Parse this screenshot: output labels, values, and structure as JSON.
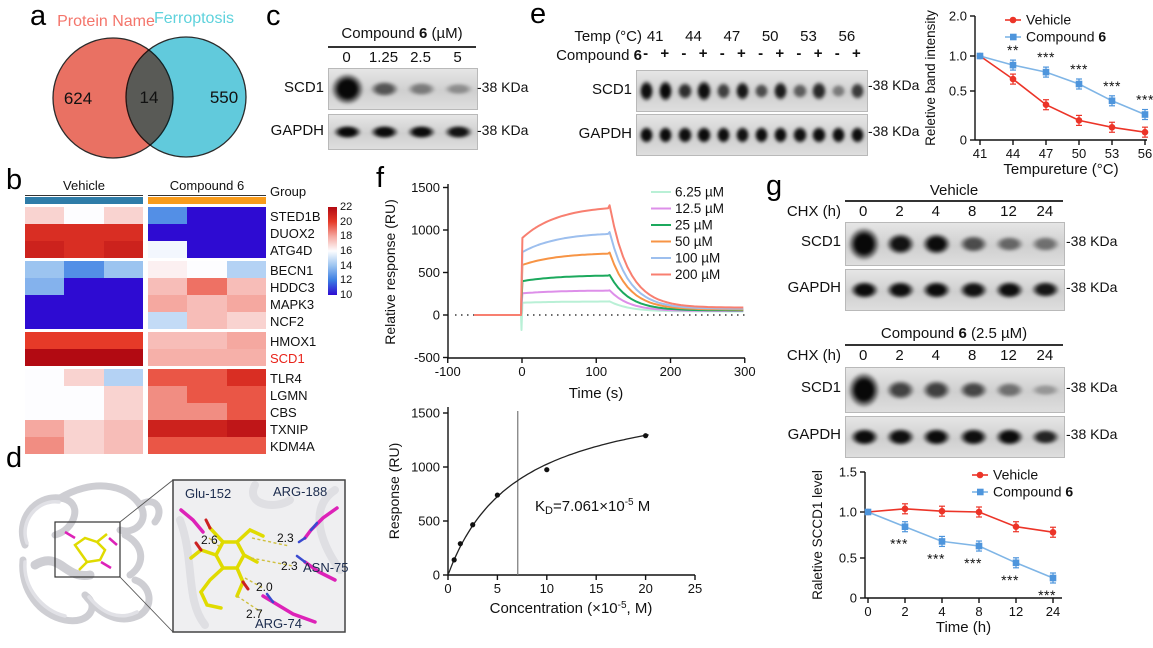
{
  "panel_a": {
    "letter": "a"
  },
  "panel_b": {
    "letter": "b"
  },
  "panel_c": {
    "letter": "c",
    "blot": {
      "title_pre": "Compound ",
      "title_bold": "6",
      "title_post": " (µM)",
      "doses": [
        "0",
        "1.25",
        "2.5",
        "5"
      ],
      "rows": [
        {
          "label": "SCD1",
          "marker": "-38 KDa",
          "bands": [
            1,
            0.5,
            0.28,
            0.18
          ]
        },
        {
          "label": "GAPDH",
          "marker": "-38 KDa",
          "bands": [
            0.95,
            0.92,
            0.92,
            0.88
          ]
        }
      ]
    }
  },
  "panel_d": {
    "letter": "d",
    "residues": [
      "Glu-152",
      "ARG-188",
      "ASN-75",
      "ARG-74"
    ],
    "distances": [
      "2.6",
      "2.3",
      "2.3",
      "2.0",
      "2.7"
    ]
  },
  "panel_e": {
    "letter": "e",
    "blot": {
      "temp_label": "Temp (°C)",
      "compound_pre": "Compound ",
      "compound_bold": "6",
      "temps": [
        "41",
        "44",
        "47",
        "50",
        "53",
        "56"
      ],
      "signs": [
        "-",
        "+",
        "-",
        "+",
        "-",
        "+",
        "-",
        "+",
        "-",
        "+",
        "-",
        "+"
      ],
      "rows": [
        {
          "label": "SCD1",
          "marker": "-38 KDa",
          "bands": [
            0.9,
            0.95,
            0.72,
            0.9,
            0.62,
            0.85,
            0.55,
            0.82,
            0.45,
            0.75,
            0.28,
            0.65
          ]
        },
        {
          "label": "GAPDH",
          "marker": "-38 KDa",
          "bands": [
            0.92,
            0.92,
            0.9,
            0.92,
            0.9,
            0.88,
            0.9,
            0.9,
            0.88,
            0.9,
            0.9,
            0.9
          ]
        }
      ]
    }
  },
  "panel_f": {
    "letter": "f"
  },
  "panel_g": {
    "letter": "g",
    "blot_vehicle": {
      "title": "Vehicle",
      "chx_label": "CHX (h)",
      "times": [
        "0",
        "2",
        "4",
        "8",
        "12",
        "24"
      ],
      "rows": [
        {
          "label": "SCD1",
          "marker": "-38 KDa",
          "bands": [
            1,
            0.88,
            0.92,
            0.55,
            0.4,
            0.35
          ]
        },
        {
          "label": "GAPDH",
          "marker": "-38 KDa",
          "bands": [
            0.92,
            0.9,
            0.92,
            0.88,
            0.9,
            0.85
          ]
        }
      ]
    },
    "blot_compound": {
      "title_pre": "Compound ",
      "title_bold": "6",
      "title_post": " (2.5 µM)",
      "chx_label": "CHX (h)",
      "times": [
        "0",
        "2",
        "4",
        "8",
        "12",
        "24"
      ],
      "rows": [
        {
          "label": "SCD1",
          "marker": "-38 KDa",
          "bands": [
            1,
            0.6,
            0.62,
            0.58,
            0.35,
            0.12
          ]
        },
        {
          "label": "GAPDH",
          "marker": "-38 KDa",
          "bands": [
            0.92,
            0.9,
            0.92,
            0.9,
            0.92,
            0.78
          ]
        }
      ]
    }
  },
  "chart_data": [
    {
      "id": "venn_a",
      "type": "venn",
      "sets": [
        {
          "label": "Protein Name",
          "value": 624,
          "color": "#E8695B",
          "label_color": "#F4756B"
        },
        {
          "label": "Ferroptosis",
          "value": 550,
          "color": "#58C7DA",
          "label_color": "#5ED2DC"
        }
      ],
      "overlap": 14
    },
    {
      "id": "heatmap_b",
      "type": "heatmap",
      "group_label": "Group",
      "col_groups": [
        {
          "label": "Vehicle",
          "color": "#2E7CA8",
          "cols": 3
        },
        {
          "label": "Compound 6",
          "color": "#F89B1B",
          "cols": 3
        }
      ],
      "rows": [
        "STED1B",
        "DUOX2",
        "ATG4D",
        "BECN1",
        "HDDC3",
        "MAPK3",
        "NCF2",
        "HMOX1",
        "SCD1",
        "TLR4",
        "LGMN",
        "CBS",
        "TXNIP",
        "KDM4A"
      ],
      "highlight_row": "SCD1",
      "highlight_color": "#E8231A",
      "row_gaps_after": [
        2,
        6,
        8
      ],
      "values": [
        [
          17,
          16,
          17,
          12.5,
          10,
          10
        ],
        [
          20.5,
          20.5,
          20.5,
          10,
          10,
          10
        ],
        [
          21,
          20.5,
          21,
          15.8,
          10,
          10
        ],
        [
          14,
          12.5,
          14,
          16.3,
          16,
          14.5
        ],
        [
          13.5,
          10,
          10,
          17.5,
          19,
          17.5
        ],
        [
          10,
          10,
          10,
          18,
          17.5,
          18
        ],
        [
          10,
          10,
          10,
          14.8,
          17.5,
          17
        ],
        [
          20,
          20,
          20,
          17.5,
          17.5,
          18
        ],
        [
          22,
          22,
          22,
          17.8,
          17.8,
          17.8
        ],
        [
          16,
          17,
          14.5,
          19.5,
          19.5,
          20.5
        ],
        [
          16,
          16,
          17,
          18.5,
          19.5,
          19.5
        ],
        [
          16,
          16,
          17,
          18.5,
          18.5,
          19.5
        ],
        [
          18,
          17,
          17.5,
          21,
          21,
          21.5
        ],
        [
          18.5,
          17,
          17.5,
          19.5,
          19.5,
          19.5
        ]
      ],
      "scale_ticks": [
        22,
        20,
        18,
        16,
        14,
        12,
        10
      ],
      "colormap_stops": [
        [
          10,
          "#2E0BD2"
        ],
        [
          12,
          "#3B7DE3"
        ],
        [
          14,
          "#9CC4F0"
        ],
        [
          16,
          "#FDFDFF"
        ],
        [
          18,
          "#F5A8A0"
        ],
        [
          20,
          "#E63A28"
        ],
        [
          22,
          "#B20A12"
        ]
      ]
    },
    {
      "id": "thermal_e",
      "type": "line",
      "x": [
        41,
        44,
        47,
        50,
        53,
        56
      ],
      "xlabel": "Tempureture (°C)",
      "ylabel": "Reletive band intensity",
      "yticks": [
        0,
        0.5,
        1,
        2
      ],
      "ytick_labels": [
        "0",
        "0.5",
        "1.0",
        "2.0"
      ],
      "ylim": [
        0,
        2
      ],
      "series": [
        {
          "name": "Vehicle",
          "color": "#EC3428",
          "marker": "circle",
          "values": [
            1,
            0.67,
            0.36,
            0.2,
            0.13,
            0.08
          ]
        },
        {
          "name": "Compound 6",
          "color": "#7FB5E6",
          "marker": "square",
          "marker_color": "#4E95DC",
          "values": [
            1,
            0.87,
            0.77,
            0.6,
            0.4,
            0.26
          ]
        }
      ],
      "sig": [
        "",
        "**",
        "***",
        "***",
        "***",
        "***"
      ],
      "sig_below": false,
      "legend_position": "top-right"
    },
    {
      "id": "spr_f",
      "type": "line",
      "xlabel": "Time (s)",
      "ylabel": "Relative response (RU)",
      "xticks": [
        -100,
        0,
        100,
        200,
        300
      ],
      "yticks": [
        -500,
        0,
        500,
        1000,
        1500
      ],
      "assoc_start": 0,
      "assoc_end": 118,
      "baseline": 0,
      "series": [
        {
          "name": "6.25 µM",
          "color": "#B9F0D6",
          "plateau": 160
        },
        {
          "name": "12.5 µM",
          "color": "#DD8FE9",
          "plateau": 290
        },
        {
          "name": "25 µM",
          "color": "#1CA95D",
          "plateau": 470
        },
        {
          "name": "50 µM",
          "color": "#F79445",
          "plateau": 735
        },
        {
          "name": "100 µM",
          "color": "#9DBFEE",
          "plateau": 975
        },
        {
          "name": "200 µM",
          "color": "#F87F70",
          "plateau": 1290
        }
      ],
      "legend_position": "right"
    },
    {
      "id": "affinity_f",
      "type": "scatter",
      "points": [
        [
          0.625,
          140
        ],
        [
          1.25,
          290
        ],
        [
          2.5,
          465
        ],
        [
          5,
          740
        ],
        [
          10,
          975
        ],
        [
          20,
          1290
        ]
      ],
      "fit_bmax": 1750,
      "fit_kd": 7.061,
      "kd_line_x": 7.061,
      "annotation": {
        "pre": "K",
        "sub": "D",
        "mid": "=7.061×10",
        "sup": "-5",
        "post": " M"
      },
      "xlabel": {
        "pre": "Concentration (×10",
        "sup": "-5",
        "post": ", M)"
      },
      "ylabel": "Response (RU)",
      "xticks": [
        0,
        5,
        10,
        15,
        20,
        25
      ],
      "yticks": [
        0,
        500,
        1000,
        1500
      ]
    },
    {
      "id": "chx_g",
      "type": "line",
      "x": [
        0,
        2,
        4,
        8,
        12,
        24
      ],
      "xlabel": "Time (h)",
      "ylabel": "Raletive SCCD1 level",
      "yticks": [
        0,
        0.5,
        1,
        1.5
      ],
      "ytick_labels": [
        "0",
        "0.5",
        "1.0",
        "1.5"
      ],
      "ylim": [
        0,
        1.5
      ],
      "series": [
        {
          "name": "Vehicle",
          "color": "#EC3428",
          "marker": "circle",
          "values": [
            1,
            1.04,
            1.01,
            1,
            0.84,
            0.78
          ]
        },
        {
          "name": "Compound 6",
          "color": "#7FB5E6",
          "marker": "square",
          "marker_color": "#4E95DC",
          "values": [
            1,
            0.84,
            0.68,
            0.63,
            0.44,
            0.25
          ]
        }
      ],
      "sig": [
        "",
        "***",
        "***",
        "***",
        "***",
        "***"
      ],
      "sig_below": true,
      "legend_position": "top-right"
    }
  ]
}
